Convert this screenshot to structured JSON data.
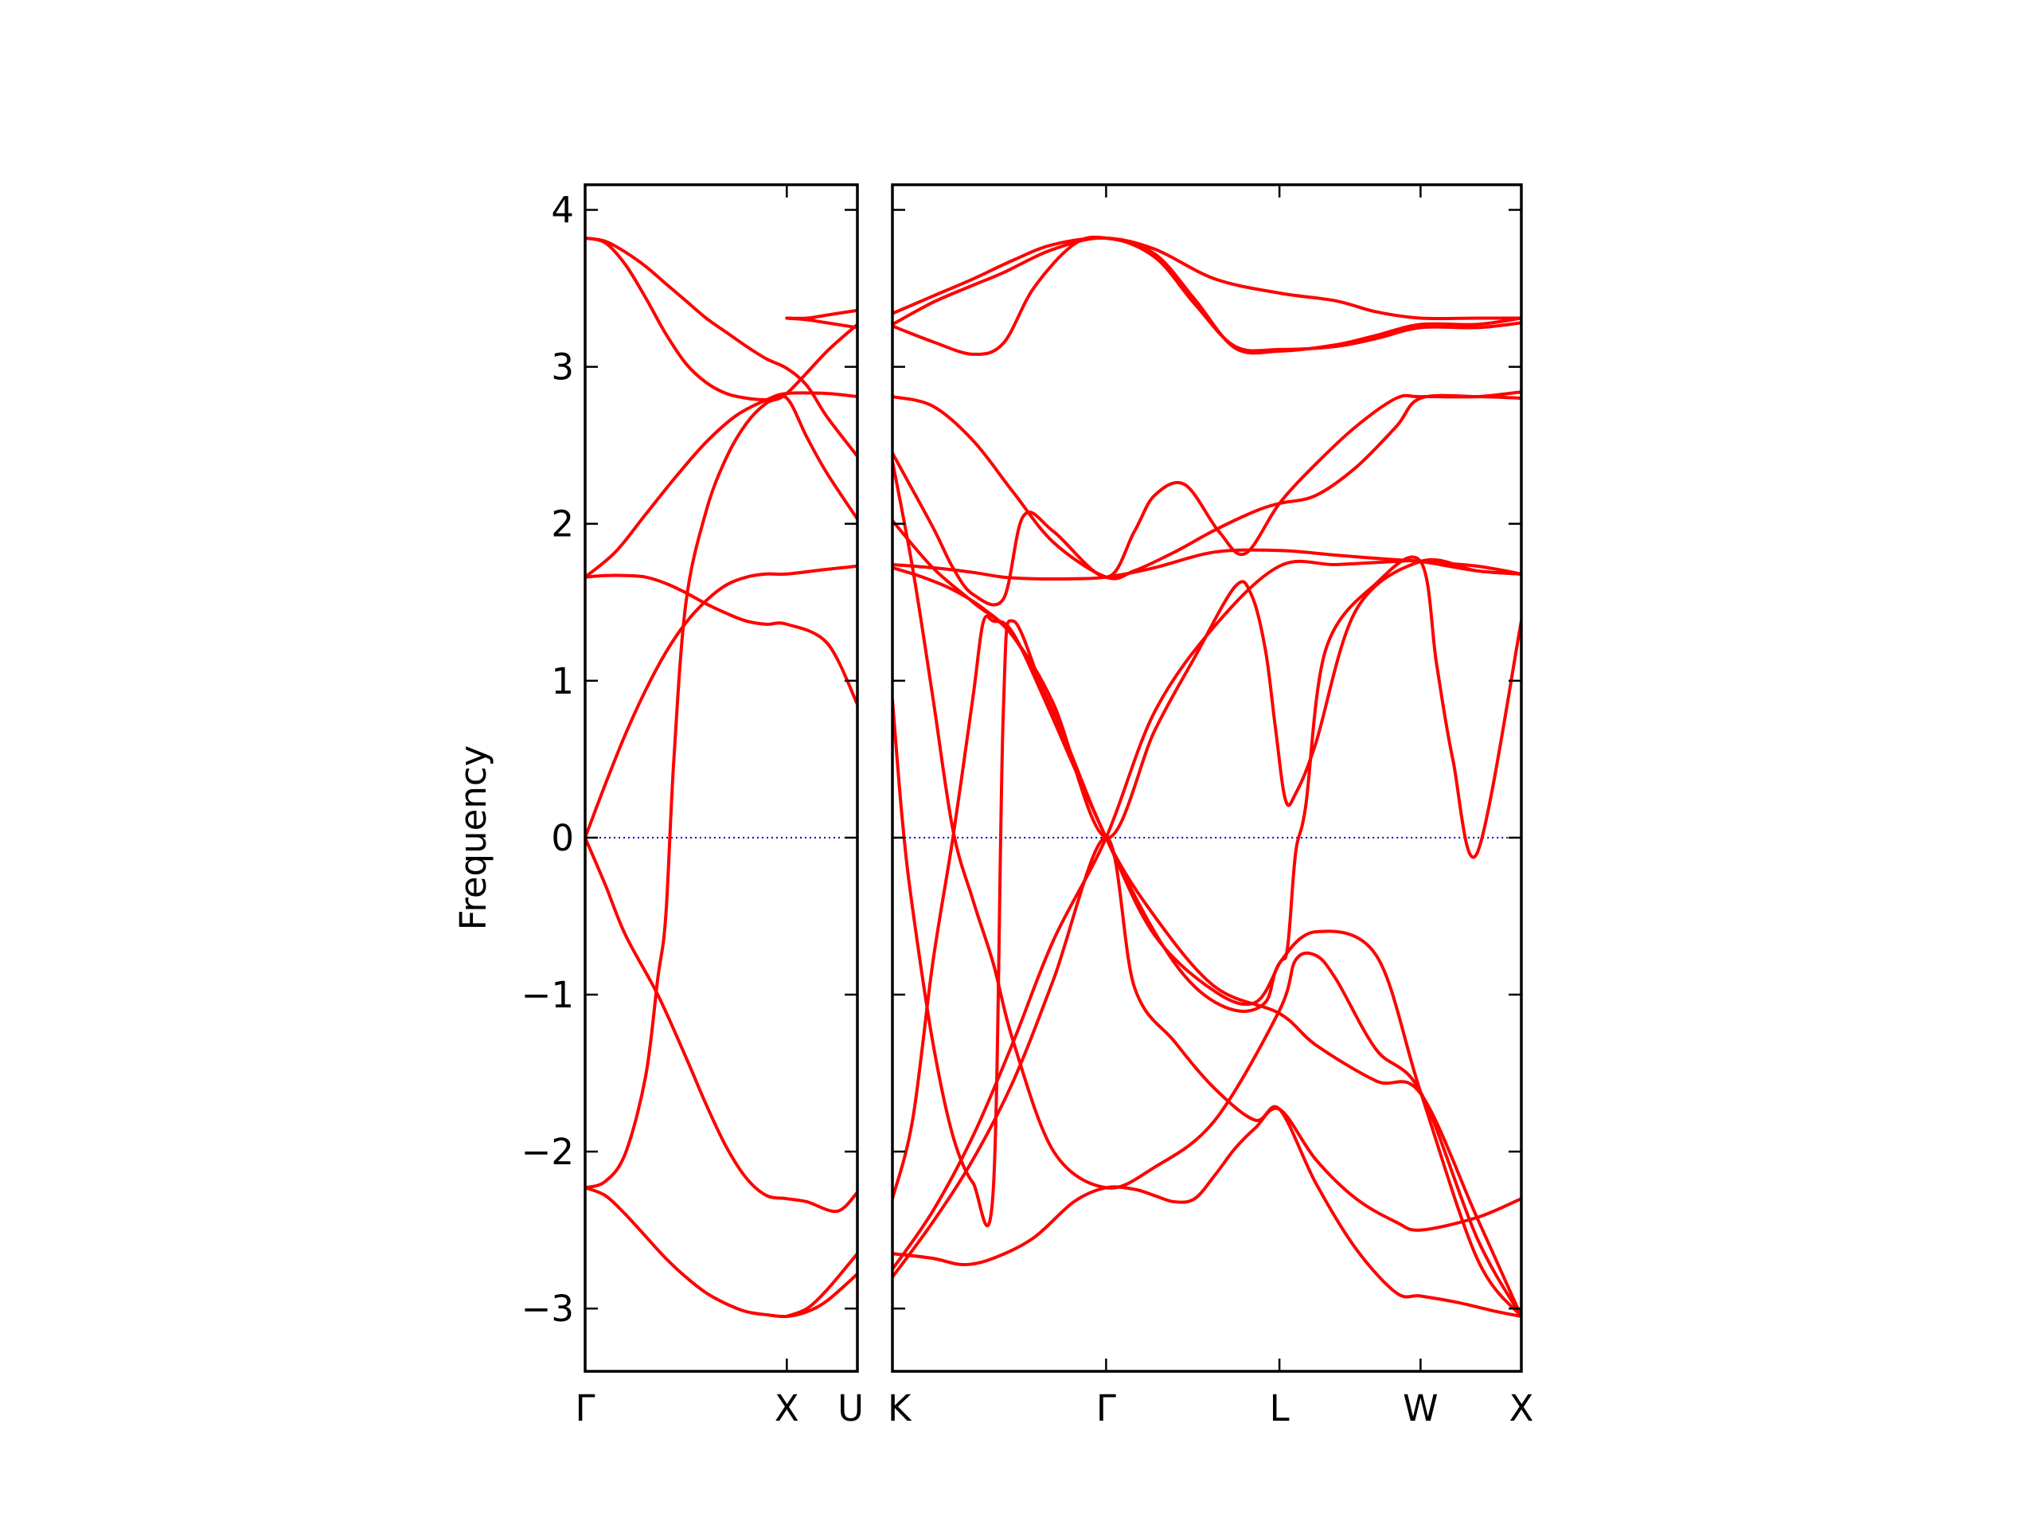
{
  "chart_data": {
    "type": "line",
    "title": "",
    "ylabel": "Frequency",
    "xlabel": "",
    "ylim": [
      -3.4,
      4.16
    ],
    "yticks": [
      -3,
      -2,
      -1,
      0,
      1,
      2,
      3,
      4
    ],
    "ytick_labels": [
      "−3",
      "−2",
      "−1",
      "0",
      "1",
      "2",
      "3",
      "4"
    ],
    "colors": {
      "bands": "#ff0000",
      "zero_line": "#0000cc",
      "axes": "#000000"
    },
    "panels": [
      {
        "xticks": [
          {
            "x": 0,
            "label": "Γ"
          },
          {
            "x": 1,
            "label": "X"
          },
          {
            "x": 1.35,
            "label": "U"
          }
        ],
        "xlim": [
          0,
          1.35
        ],
        "zero_line": [
          0,
          1.28
        ],
        "series": [
          {
            "x": [
              0,
              0.1,
              0.2,
              0.3,
              0.4,
              0.5,
              0.6,
              0.7,
              0.8,
              0.9,
              1.0,
              1.1,
              1.2,
              1.35
            ],
            "y": [
              3.82,
              3.8,
              3.73,
              3.64,
              3.53,
              3.42,
              3.31,
              3.22,
              3.13,
              3.05,
              2.99,
              2.88,
              2.68,
              2.43
            ]
          },
          {
            "x": [
              0,
              0.1,
              0.2,
              0.3,
              0.4,
              0.5,
              0.6,
              0.7,
              0.8,
              0.9,
              1.0,
              1.1,
              1.2,
              1.35
            ],
            "y": [
              3.82,
              3.79,
              3.65,
              3.44,
              3.21,
              3.02,
              2.9,
              2.83,
              2.8,
              2.79,
              2.8,
              2.55,
              2.32,
              2.03
            ]
          },
          {
            "x": [
              0,
              0.15,
              0.3,
              0.45,
              0.6,
              0.75,
              0.9,
              1.0,
              1.2,
              1.35
            ],
            "y": [
              1.66,
              1.82,
              2.06,
              2.3,
              2.52,
              2.69,
              2.79,
              2.83,
              2.83,
              2.81
            ]
          },
          {
            "x": [
              0,
              0.1,
              0.2,
              0.3,
              0.4,
              0.5,
              0.6,
              0.7,
              0.8,
              0.9,
              1.0,
              1.2,
              1.35
            ],
            "y": [
              1.66,
              1.67,
              1.67,
              1.66,
              1.62,
              1.56,
              1.49,
              1.43,
              1.38,
              1.36,
              1.36,
              1.24,
              0.85
            ]
          },
          {
            "x": [
              0,
              0.1,
              0.2,
              0.3,
              0.4,
              0.5,
              0.6,
              0.7,
              0.8,
              0.9,
              1.0,
              1.2,
              1.35
            ],
            "y": [
              0,
              0.34,
              0.66,
              0.94,
              1.18,
              1.37,
              1.51,
              1.61,
              1.66,
              1.68,
              1.68,
              1.71,
              1.73
            ]
          },
          {
            "x": [
              0,
              0.1,
              0.2,
              0.3,
              0.36,
              0.4,
              0.44,
              0.5,
              0.6,
              0.7,
              0.8,
              0.9,
              1.0,
              1.2,
              1.35
            ],
            "y": [
              -2.23,
              -2.19,
              -2.01,
              -1.52,
              -0.9,
              -0.5,
              0.5,
              1.5,
              2.08,
              2.42,
              2.64,
              2.77,
              2.83,
              3.1,
              3.27
            ]
          },
          {
            "x": [
              0,
              0.1,
              0.2,
              0.36,
              0.5,
              0.6,
              0.7,
              0.8,
              0.9,
              1.0,
              1.1,
              1.25,
              1.35
            ],
            "y": [
              0,
              -0.3,
              -0.62,
              -1.0,
              -1.4,
              -1.7,
              -1.97,
              -2.17,
              -2.28,
              -2.3,
              -2.32,
              -2.38,
              -2.26
            ]
          },
          {
            "x": [
              0,
              0.1,
              0.2,
              0.3,
              0.4,
              0.5,
              0.6,
              0.7,
              0.8,
              0.9,
              1.0,
              1.1,
              1.2,
              1.35
            ],
            "y": [
              -2.23,
              -2.28,
              -2.4,
              -2.54,
              -2.68,
              -2.8,
              -2.9,
              -2.97,
              -3.02,
              -3.04,
              -3.05,
              -3.02,
              -2.95,
              -2.78
            ]
          },
          {
            "x": [
              1.0,
              1.1,
              1.2,
              1.35
            ],
            "y": [
              -3.05,
              -3.0,
              -2.88,
              -2.65
            ]
          },
          {
            "x": [
              1.0,
              1.1,
              1.2,
              1.35
            ],
            "y": [
              3.31,
              3.31,
              3.33,
              3.36
            ]
          },
          {
            "x": [
              1.0,
              1.1,
              1.2,
              1.35
            ],
            "y": [
              3.31,
              3.3,
              3.28,
              3.25
            ]
          }
        ]
      },
      {
        "xticks": [
          {
            "x": 0,
            "label": "K"
          },
          {
            "x": 1.06,
            "label": "Γ"
          },
          {
            "x": 1.92,
            "label": "L"
          },
          {
            "x": 2.62,
            "label": "W"
          },
          {
            "x": 3.12,
            "label": "X"
          }
        ],
        "xlim": [
          0,
          3.12
        ],
        "zero_line": [
          0.06,
          3.12
        ],
        "series": [
          {
            "x": [
              0,
              0.2,
              0.4,
              0.6,
              0.8,
              1.06,
              1.3,
              1.6,
              1.92,
              2.2,
              2.4,
              2.62,
              2.9,
              3.12
            ],
            "y": [
              3.34,
              3.45,
              3.56,
              3.68,
              3.78,
              3.82,
              3.75,
              3.56,
              3.47,
              3.42,
              3.35,
              3.31,
              3.31,
              3.31
            ]
          },
          {
            "x": [
              0,
              0.2,
              0.4,
              0.55,
              0.8,
              1.06,
              1.3,
              1.5,
              1.7,
              1.92,
              2.2,
              2.4,
              2.62,
              2.9,
              3.12
            ],
            "y": [
              3.27,
              3.41,
              3.52,
              3.6,
              3.75,
              3.82,
              3.7,
              3.4,
              3.13,
              3.11,
              3.13,
              3.18,
              3.25,
              3.25,
              3.28
            ]
          },
          {
            "x": [
              0,
              0.2,
              0.4,
              0.55,
              0.7,
              0.9,
              1.06,
              1.3,
              1.5,
              1.7,
              1.92,
              2.2,
              2.4,
              2.62,
              2.9,
              3.12
            ],
            "y": [
              3.26,
              3.16,
              3.08,
              3.15,
              3.5,
              3.78,
              3.82,
              3.72,
              3.43,
              3.12,
              3.1,
              3.14,
              3.2,
              3.27,
              3.27,
              3.31
            ]
          },
          {
            "x": [
              0,
              0.2,
              0.4,
              0.6,
              0.8,
              1.06,
              1.2,
              1.4,
              1.6,
              1.8,
              1.92,
              2.1,
              2.3,
              2.5,
              2.62,
              2.9,
              3.12
            ],
            "y": [
              2.81,
              2.75,
              2.53,
              2.2,
              1.88,
              1.66,
              1.7,
              1.82,
              1.96,
              2.08,
              2.13,
              2.18,
              2.36,
              2.62,
              2.8,
              2.81,
              2.8
            ]
          },
          {
            "x": [
              0,
              0.2,
              0.3,
              0.4,
              0.55,
              0.65,
              0.8,
              1.06,
              1.2,
              1.3,
              1.45,
              1.62,
              1.75,
              1.92,
              2.1,
              2.3,
              2.5,
              2.62,
              2.9,
              3.12
            ],
            "y": [
              2.45,
              1.98,
              1.72,
              1.55,
              1.52,
              2.05,
              1.95,
              1.66,
              1.95,
              2.18,
              2.25,
              1.95,
              1.81,
              2.13,
              2.38,
              2.62,
              2.8,
              2.81,
              2.81,
              2.84
            ]
          },
          {
            "x": [
              0,
              0.2,
              0.4,
              0.55,
              0.7,
              0.9,
              1.06,
              1.3,
              1.6,
              1.92,
              2.2,
              2.4,
              2.62,
              2.9,
              3.12
            ],
            "y": [
              1.74,
              1.72,
              1.69,
              1.66,
              1.65,
              1.65,
              1.66,
              1.72,
              1.82,
              1.83,
              1.8,
              1.78,
              1.76,
              1.73,
              1.68
            ]
          },
          {
            "x": [
              0,
              0.15,
              0.3,
              0.45,
              0.6,
              0.8,
              1.06,
              1.3,
              1.5,
              1.7,
              1.78,
              1.85,
              1.9,
              1.95,
              2.0,
              2.1,
              2.3,
              2.62,
              2.9,
              3.12
            ],
            "y": [
              1.72,
              1.66,
              1.58,
              1.46,
              1.28,
              0.85,
              0,
              0.68,
              1.15,
              1.6,
              1.55,
              1.2,
              0.7,
              0.24,
              0.28,
              0.6,
              1.45,
              1.76,
              1.7,
              1.68
            ]
          },
          {
            "x": [
              0,
              0.2,
              0.4,
              0.6,
              0.8,
              1.06,
              1.3,
              1.6,
              1.92,
              2.1,
              2.4,
              2.62,
              2.9,
              3.12
            ],
            "y": [
              2.02,
              1.72,
              1.5,
              1.28,
              0.8,
              0,
              -0.5,
              -0.95,
              -1.12,
              -1.32,
              -1.55,
              -1.63,
              -2.42,
              -3.05
            ]
          },
          {
            "x": [
              0,
              0.1,
              0.2,
              0.3,
              0.4,
              0.5,
              0.6,
              0.8,
              1.06,
              1.3,
              1.6,
              1.92,
              2.0,
              2.1,
              2.2,
              2.4,
              2.62,
              2.9,
              3.12
            ],
            "y": [
              2.4,
              1.72,
              0.9,
              0.05,
              -0.4,
              -0.8,
              -1.3,
              -2.0,
              -2.23,
              -2.1,
              -1.8,
              -1.1,
              -0.78,
              -0.75,
              -0.9,
              -1.35,
              -1.62,
              -2.55,
              -3.05
            ]
          },
          {
            "x": [
              0,
              0.05,
              0.1,
              0.2,
              0.3,
              0.4,
              0.5,
              0.55,
              0.6,
              0.8,
              1.06,
              1.3,
              1.6,
              1.8,
              1.92,
              1.96,
              2.0,
              2.05,
              2.15,
              2.4,
              2.62,
              2.7,
              2.78,
              2.9,
              3.12
            ],
            "y": [
              0.88,
              0.1,
              -0.45,
              -1.3,
              -1.9,
              -2.2,
              -2.25,
              0.8,
              1.38,
              0.75,
              0,
              -0.62,
              -0.98,
              -1.05,
              -0.8,
              -0.7,
              -0.1,
              0.2,
              1.2,
              1.62,
              1.76,
              1.1,
              0.5,
              -0.1,
              1.38
            ]
          },
          {
            "x": [
              0,
              0.1,
              0.2,
              0.3,
              0.4,
              0.45,
              0.5,
              0.6,
              0.8,
              1.06,
              1.3,
              1.5,
              1.7,
              1.85,
              1.92,
              2.1,
              2.4,
              2.62,
              2.9,
              3.12
            ],
            "y": [
              -2.3,
              -1.8,
              -0.8,
              0,
              0.9,
              1.37,
              1.38,
              1.3,
              0.75,
              0,
              -0.6,
              -0.95,
              -1.1,
              -1.05,
              -0.8,
              -0.6,
              -0.75,
              -1.62,
              -2.68,
              -3.05
            ]
          },
          {
            "x": [
              0,
              0.2,
              0.4,
              0.6,
              0.8,
              1.06,
              1.3,
              1.6,
              1.92,
              2.2,
              2.5,
              2.62,
              2.9,
              3.12
            ],
            "y": [
              -2.75,
              -2.38,
              -1.9,
              -1.3,
              -0.65,
              0,
              0.8,
              1.35,
              1.73,
              1.74,
              1.76,
              1.76,
              1.7,
              1.68
            ]
          },
          {
            "x": [
              0,
              0.2,
              0.35,
              0.5,
              0.7,
              0.9,
              1.06,
              1.2,
              1.3,
              1.4,
              1.5,
              1.6,
              1.7,
              1.8,
              1.92,
              2.1,
              2.3,
              2.5,
              2.62,
              2.9,
              3.12
            ],
            "y": [
              -2.65,
              -2.68,
              -2.72,
              -2.68,
              -2.55,
              -2.32,
              -2.23,
              -2.24,
              -2.28,
              -2.32,
              -2.3,
              -2.15,
              -1.98,
              -1.85,
              -1.73,
              -2.05,
              -2.3,
              -2.45,
              -2.5,
              -2.42,
              -2.3
            ]
          },
          {
            "x": [
              0,
              0.2,
              0.4,
              0.6,
              0.8,
              1.06,
              1.2,
              1.4,
              1.6,
              1.8,
              1.92,
              2.1,
              2.3,
              2.5,
              2.62,
              2.8,
              3.0,
              3.12
            ],
            "y": [
              -2.8,
              -2.45,
              -2.05,
              -1.55,
              -0.9,
              0,
              -0.95,
              -1.3,
              -1.6,
              -1.8,
              -1.73,
              -2.2,
              -2.62,
              -2.9,
              -2.92,
              -2.96,
              -3.02,
              -3.05
            ]
          }
        ]
      }
    ]
  }
}
